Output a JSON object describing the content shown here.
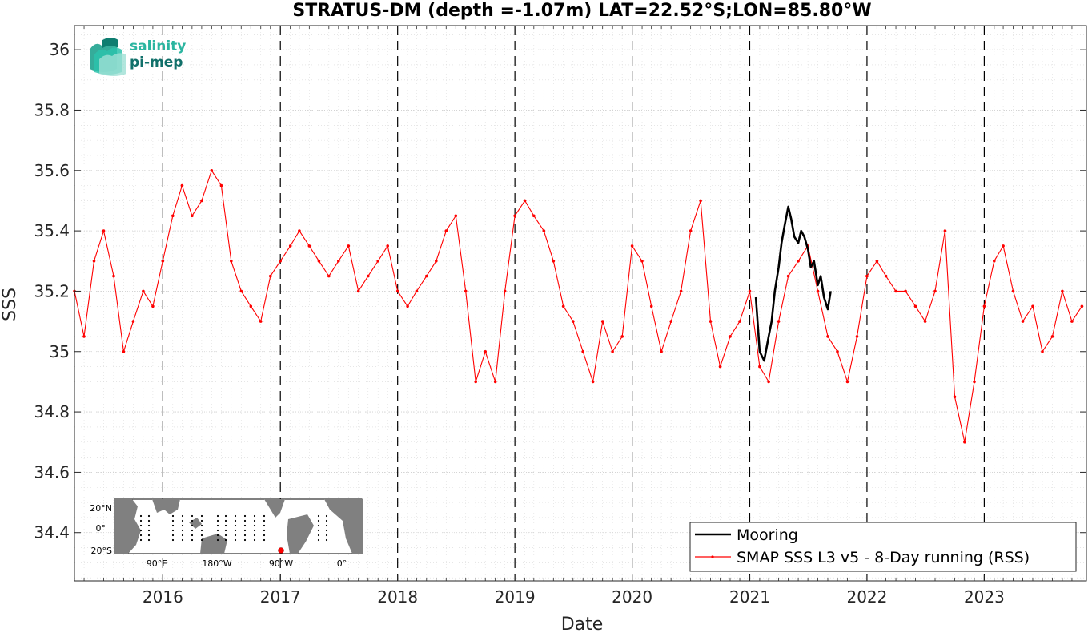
{
  "chart_data": {
    "type": "line",
    "title": "STRATUS-DM (depth =-1.07m) LAT=22.52°S;LON=85.80°W",
    "xlabel": "Date",
    "ylabel": "SSS",
    "xlim": [
      "2015-04-01",
      "2023-11-15"
    ],
    "ylim": [
      34.24,
      36.08
    ],
    "x_ticks": [
      "2016",
      "2017",
      "2018",
      "2019",
      "2020",
      "2021",
      "2022",
      "2023"
    ],
    "y_ticks": [
      "34.4",
      "34.6",
      "34.8",
      "35",
      "35.2",
      "35.4",
      "35.6",
      "35.8",
      "36"
    ],
    "y_tick_values": [
      34.4,
      34.6,
      34.8,
      35.0,
      35.2,
      35.4,
      35.6,
      35.8,
      36.0
    ],
    "grid": true,
    "year_dashed_lines": true,
    "legend_position": "bottom-right",
    "series": [
      {
        "name": "Mooring",
        "color": "#000000",
        "x": [
          "2021-01-20",
          "2021-02-01",
          "2021-02-15",
          "2021-03-01",
          "2021-03-10",
          "2021-03-20",
          "2021-04-01",
          "2021-04-10",
          "2021-04-20",
          "2021-05-01",
          "2021-05-10",
          "2021-05-20",
          "2021-06-01",
          "2021-06-10",
          "2021-06-20",
          "2021-07-01",
          "2021-07-10",
          "2021-07-20",
          "2021-08-01",
          "2021-08-10",
          "2021-08-20",
          "2021-09-01",
          "2021-09-10"
        ],
        "y": [
          35.18,
          35.0,
          34.97,
          35.05,
          35.1,
          35.2,
          35.28,
          35.36,
          35.42,
          35.48,
          35.44,
          35.38,
          35.36,
          35.4,
          35.38,
          35.34,
          35.28,
          35.3,
          35.22,
          35.25,
          35.18,
          35.14,
          35.2
        ]
      },
      {
        "name": "SMAP SSS L3 v5 - 8-Day running (RSS)",
        "color": "#ff0000",
        "x": [
          "2015-04-01",
          "2015-05-01",
          "2015-06-01",
          "2015-07-01",
          "2015-08-01",
          "2015-09-01",
          "2015-10-01",
          "2015-11-01",
          "2015-12-01",
          "2016-01-01",
          "2016-02-01",
          "2016-03-01",
          "2016-04-01",
          "2016-05-01",
          "2016-06-01",
          "2016-07-01",
          "2016-08-01",
          "2016-09-01",
          "2016-10-01",
          "2016-11-01",
          "2016-12-01",
          "2017-01-01",
          "2017-02-01",
          "2017-03-01",
          "2017-04-01",
          "2017-05-01",
          "2017-06-01",
          "2017-07-01",
          "2017-08-01",
          "2017-09-01",
          "2017-10-01",
          "2017-11-01",
          "2017-12-01",
          "2018-01-01",
          "2018-02-01",
          "2018-03-01",
          "2018-04-01",
          "2018-05-01",
          "2018-06-01",
          "2018-07-01",
          "2018-08-01",
          "2018-09-01",
          "2018-10-01",
          "2018-11-01",
          "2018-12-01",
          "2019-01-01",
          "2019-02-01",
          "2019-03-01",
          "2019-04-01",
          "2019-05-01",
          "2019-06-01",
          "2019-07-01",
          "2019-08-01",
          "2019-09-01",
          "2019-10-01",
          "2019-11-01",
          "2019-12-01",
          "2020-01-01",
          "2020-02-01",
          "2020-03-01",
          "2020-04-01",
          "2020-05-01",
          "2020-06-01",
          "2020-07-01",
          "2020-08-01",
          "2020-09-01",
          "2020-10-01",
          "2020-11-01",
          "2020-12-01",
          "2021-01-01",
          "2021-02-01",
          "2021-03-01",
          "2021-04-01",
          "2021-05-01",
          "2021-06-01",
          "2021-07-01",
          "2021-08-01",
          "2021-09-01",
          "2021-10-01",
          "2021-11-01",
          "2021-12-01",
          "2022-01-01",
          "2022-02-01",
          "2022-03-01",
          "2022-04-01",
          "2022-05-01",
          "2022-06-01",
          "2022-07-01",
          "2022-08-01",
          "2022-09-01",
          "2022-10-01",
          "2022-11-01",
          "2022-12-01",
          "2023-01-01",
          "2023-02-01",
          "2023-03-01",
          "2023-04-01",
          "2023-05-01",
          "2023-06-01",
          "2023-07-01",
          "2023-08-01",
          "2023-09-01",
          "2023-10-01",
          "2023-11-01"
        ],
        "y": [
          35.2,
          35.05,
          35.3,
          35.4,
          35.25,
          35.0,
          35.1,
          35.2,
          35.15,
          35.3,
          35.45,
          35.55,
          35.45,
          35.5,
          35.6,
          35.55,
          35.3,
          35.2,
          35.15,
          35.1,
          35.25,
          35.3,
          35.35,
          35.4,
          35.35,
          35.3,
          35.25,
          35.3,
          35.35,
          35.2,
          35.25,
          35.3,
          35.35,
          35.2,
          35.15,
          35.2,
          35.25,
          35.3,
          35.4,
          35.45,
          35.2,
          34.9,
          35.0,
          34.9,
          35.2,
          35.45,
          35.5,
          35.45,
          35.4,
          35.3,
          35.15,
          35.1,
          35.0,
          34.9,
          35.1,
          35.0,
          35.05,
          35.35,
          35.3,
          35.15,
          35.0,
          35.1,
          35.2,
          35.4,
          35.5,
          35.1,
          34.95,
          35.05,
          35.1,
          35.2,
          34.95,
          34.9,
          35.1,
          35.25,
          35.3,
          35.35,
          35.2,
          35.05,
          35.0,
          34.9,
          35.05,
          35.25,
          35.3,
          35.25,
          35.2,
          35.2,
          35.15,
          35.1,
          35.2,
          35.4,
          34.85,
          34.7,
          34.9,
          35.15,
          35.3,
          35.35,
          35.2,
          35.1,
          35.15,
          35.0,
          35.05,
          35.2,
          35.1,
          35.15
        ]
      }
    ]
  },
  "logo": {
    "line1": "salinity",
    "line2": "pi-mep"
  },
  "inset_map": {
    "lat_labels": [
      "20°N",
      "0°",
      "20°S"
    ],
    "lon_labels": [
      "90°E",
      "180°W",
      "90°W",
      "0°"
    ],
    "land_color": "#808080",
    "ocean_color": "#ffffff",
    "marker_color": "#ff0000"
  }
}
